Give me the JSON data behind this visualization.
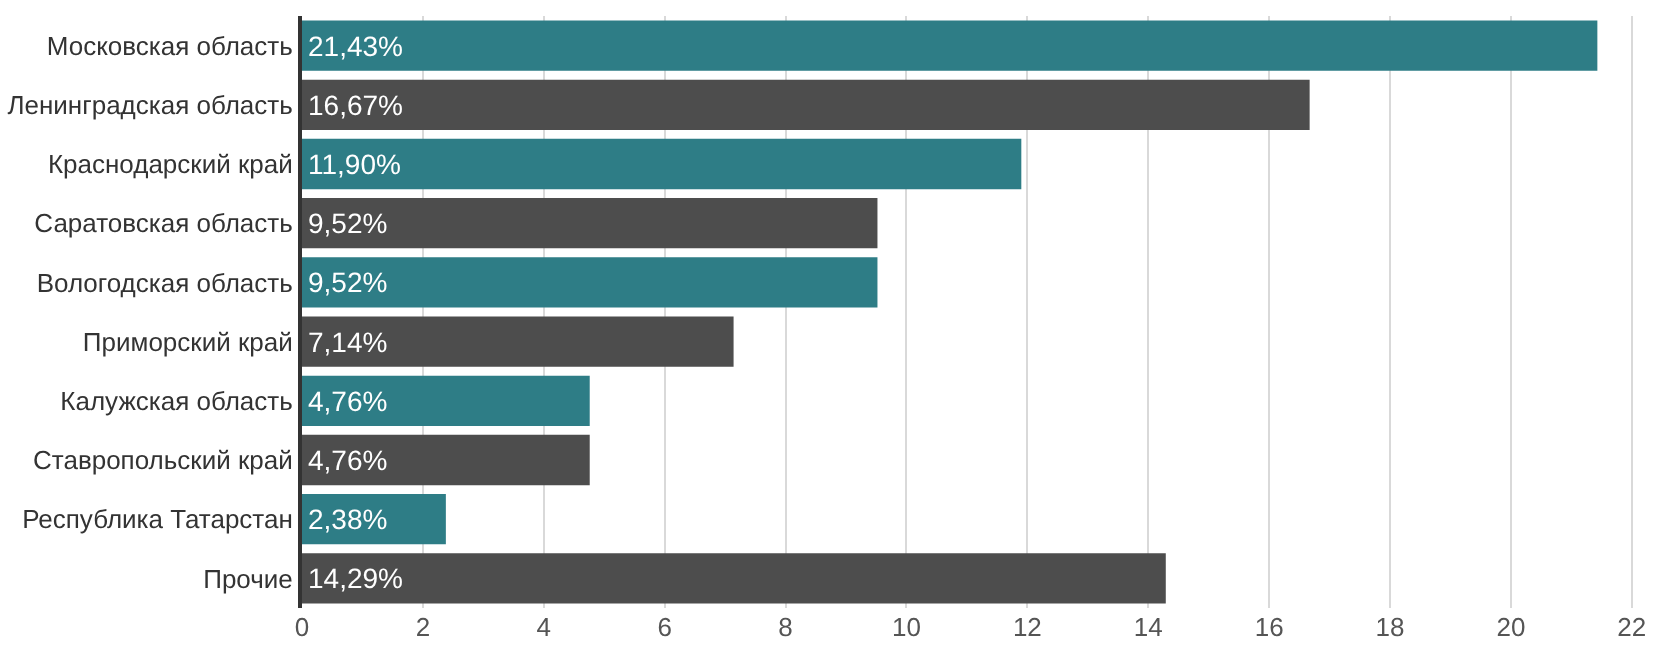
{
  "chart_data": {
    "type": "bar",
    "orientation": "horizontal",
    "categories": [
      "Московская область",
      "Ленинградская область",
      "Краснодарский край",
      "Саратовская область",
      "Вологодская область",
      "Приморский край",
      "Калужская область",
      "Ставропольский край",
      "Республика Татарстан",
      "Прочие"
    ],
    "values": [
      21.43,
      16.67,
      11.9,
      9.52,
      9.52,
      7.14,
      4.76,
      4.76,
      2.38,
      14.29
    ],
    "value_labels": [
      "21,43%",
      "16,67%",
      "11,90%",
      "9,52%",
      "9,52%",
      "7,14%",
      "4,76%",
      "4,76%",
      "2,38%",
      "14,29%"
    ],
    "colors": [
      "#2e7d86",
      "#4d4d4d",
      "#2e7d86",
      "#4d4d4d",
      "#2e7d86",
      "#4d4d4d",
      "#2e7d86",
      "#4d4d4d",
      "#2e7d86",
      "#4d4d4d"
    ],
    "xlim": [
      0,
      22.4
    ],
    "xticks": [
      0,
      2,
      4,
      6,
      8,
      10,
      12,
      14,
      16,
      18,
      20,
      22
    ],
    "grid": "x",
    "legend": false
  }
}
